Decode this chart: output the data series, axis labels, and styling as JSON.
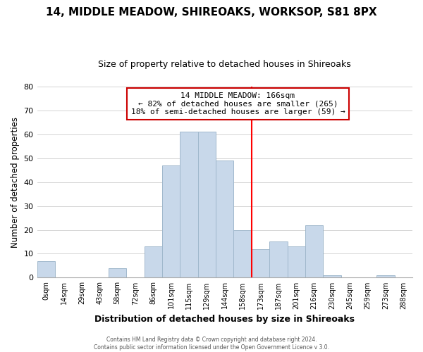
{
  "title": "14, MIDDLE MEADOW, SHIREOAKS, WORKSOP, S81 8PX",
  "subtitle": "Size of property relative to detached houses in Shireoaks",
  "xlabel": "Distribution of detached houses by size in Shireoaks",
  "ylabel": "Number of detached properties",
  "footer_lines": [
    "Contains HM Land Registry data © Crown copyright and database right 2024.",
    "Contains public sector information licensed under the Open Government Licence v 3.0."
  ],
  "bin_labels": [
    "0sqm",
    "14sqm",
    "29sqm",
    "43sqm",
    "58sqm",
    "72sqm",
    "86sqm",
    "101sqm",
    "115sqm",
    "129sqm",
    "144sqm",
    "158sqm",
    "173sqm",
    "187sqm",
    "201sqm",
    "216sqm",
    "230sqm",
    "245sqm",
    "259sqm",
    "273sqm",
    "288sqm"
  ],
  "bar_heights": [
    7,
    0,
    0,
    0,
    4,
    0,
    13,
    47,
    61,
    61,
    49,
    20,
    12,
    15,
    13,
    22,
    1,
    0,
    0,
    1,
    0
  ],
  "bar_color": "#c8d8ea",
  "bar_edge_color": "#a0b8cc",
  "grid_color": "#cccccc",
  "vline_x_idx": 12,
  "vline_color": "red",
  "annotation_title": "14 MIDDLE MEADOW: 166sqm",
  "annotation_line1": "← 82% of detached houses are smaller (265)",
  "annotation_line2": "18% of semi-detached houses are larger (59) →",
  "annotation_box_color": "white",
  "annotation_box_edge_color": "#cc0000",
  "ylim": [
    0,
    80
  ],
  "yticks": [
    0,
    10,
    20,
    30,
    40,
    50,
    60,
    70,
    80
  ],
  "title_fontsize": 11,
  "subtitle_fontsize": 9
}
